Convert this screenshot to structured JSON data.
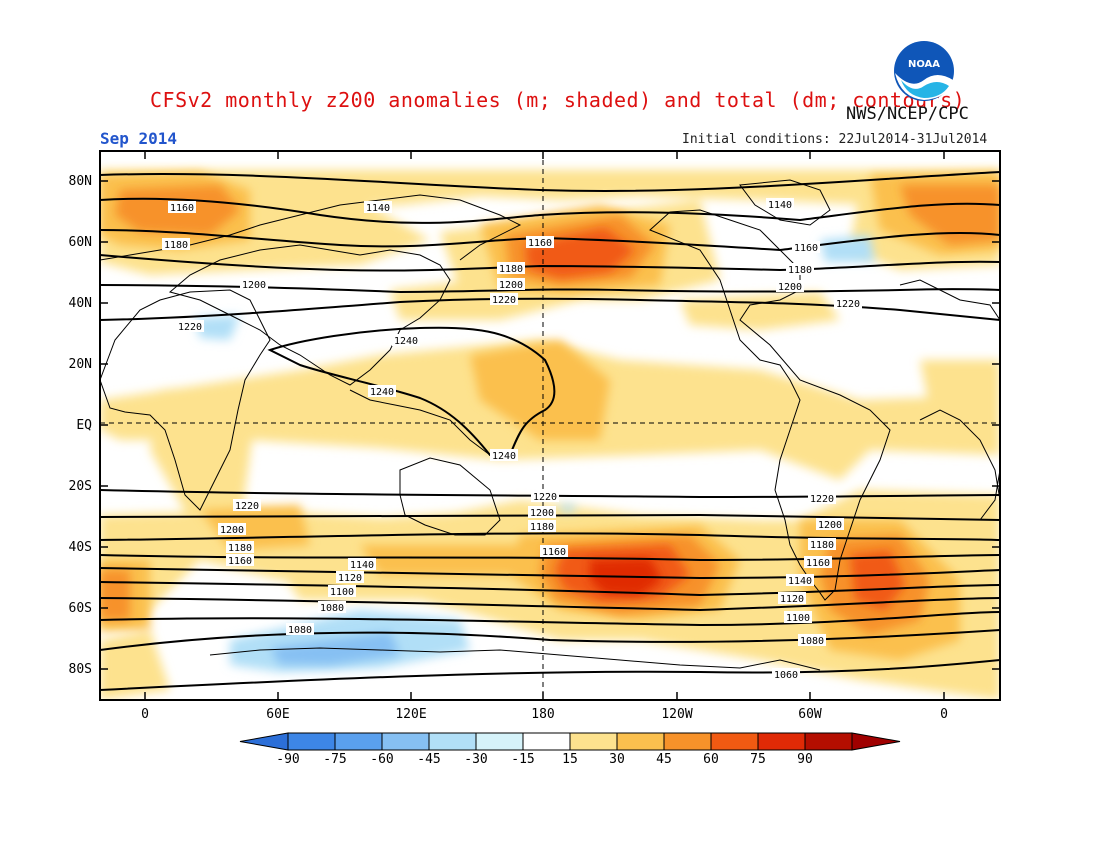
{
  "header": {
    "title": "CFSv2 monthly z200 anomalies (m; shaded) and total (dm; contours)",
    "month": "Sep 2014",
    "org": "NWS/NCEP/CPC",
    "initial_conditions": "Initial conditions: 22Jul2014-31Jul2014",
    "logo_text": "NOAA"
  },
  "axes": {
    "lat_labels": [
      "80N",
      "60N",
      "40N",
      "20N",
      "EQ",
      "20S",
      "40S",
      "60S",
      "80S"
    ],
    "lon_labels": [
      "0",
      "60E",
      "120E",
      "180",
      "120W",
      "60W",
      "0"
    ]
  },
  "contour_labels": [
    "1140",
    "1160",
    "1180",
    "1200",
    "1220",
    "1240",
    "1120",
    "1100",
    "1080",
    "1060"
  ],
  "colorbar": {
    "ticks": [
      "-90",
      "-75",
      "-60",
      "-45",
      "-30",
      "-15",
      "15",
      "30",
      "45",
      "60",
      "75",
      "90"
    ],
    "colors": [
      "#2c6fd8",
      "#3d86e6",
      "#5aa0ee",
      "#86c0f3",
      "#b1dff7",
      "#d6f3fa",
      "#ffffff",
      "#fde28e",
      "#fbc04e",
      "#f7922a",
      "#f15a12",
      "#e02a06",
      "#b40e00",
      "#a00000"
    ]
  },
  "colors": {
    "title": "#dd1010",
    "month": "#2255cc",
    "contour": "#000000"
  },
  "map_meta": {
    "projection": "cylindrical equidistant",
    "lon_range": [
      -20,
      380
    ],
    "lat_range": [
      -90,
      90
    ]
  }
}
